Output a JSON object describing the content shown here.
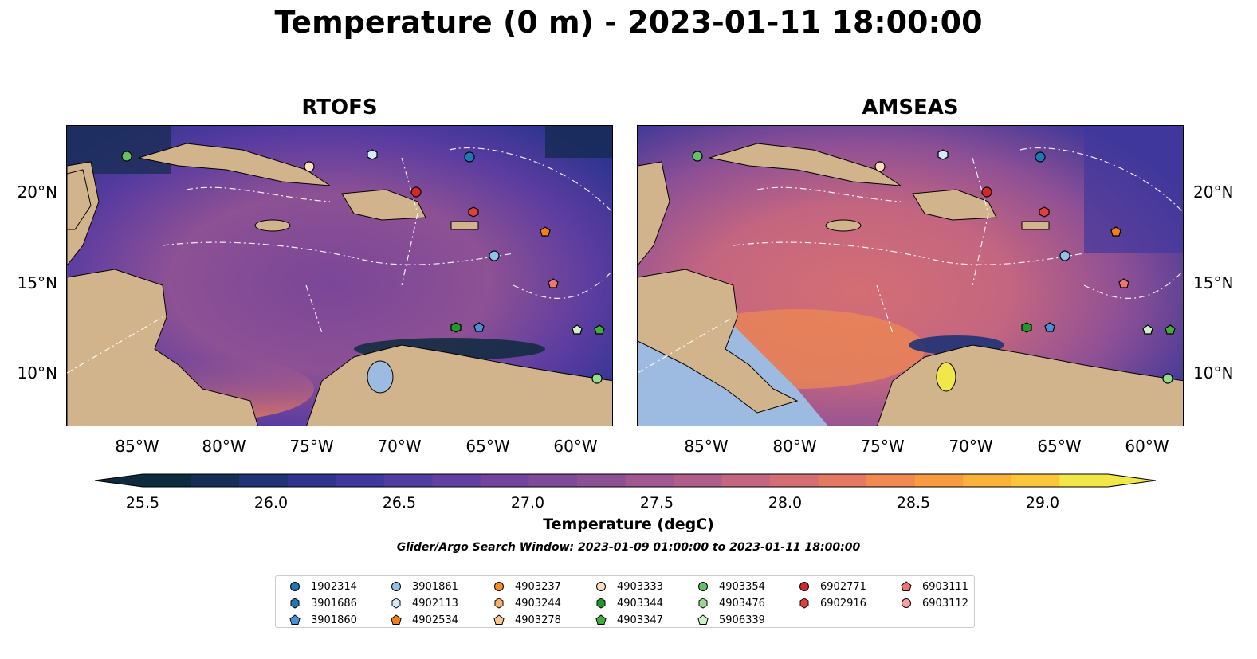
{
  "title": "Temperature (0 m) - 2023-01-11 18:00:00",
  "panels": [
    {
      "id": "rtofs",
      "title": "RTOFS"
    },
    {
      "id": "amseas",
      "title": "AMSEAS"
    }
  ],
  "lat_ticks": [
    "20°N",
    "15°N",
    "10°N"
  ],
  "lon_ticks": [
    "85°W",
    "80°W",
    "75°W",
    "70°W",
    "65°W",
    "60°W"
  ],
  "colorbar": {
    "label": "Temperature (degC)",
    "ticks": [
      "25.5",
      "26.0",
      "26.5",
      "27.0",
      "27.5",
      "28.0",
      "28.5",
      "29.0"
    ],
    "colors": [
      "#0d2a3e",
      "#162e57",
      "#1f3275",
      "#2f3490",
      "#41389d",
      "#523ba1",
      "#623fa0",
      "#72449d",
      "#7f4a99",
      "#8e5095",
      "#a15790",
      "#b05e89",
      "#c46680",
      "#d46e74",
      "#e47a62",
      "#f08a4f",
      "#f89c3f",
      "#fcb138",
      "#fcc63a",
      "#f2e748"
    ],
    "extend": "both"
  },
  "search_window": "Glider/Argo Search Window: 2023-01-09 01:00:00 to 2023-01-11 18:00:00",
  "legend": {
    "columns": [
      [
        {
          "id": "1902314",
          "marker": "circle",
          "color": "#1f77b4"
        },
        {
          "id": "3901686",
          "marker": "hexagon",
          "color": "#1f77b4"
        },
        {
          "id": "3901860",
          "marker": "pentagon",
          "color": "#4a8fd8"
        }
      ],
      [
        {
          "id": "3901861",
          "marker": "circle",
          "color": "#8fc1ea"
        },
        {
          "id": "4902113",
          "marker": "hexagon",
          "color": "#d4eaf8"
        },
        {
          "id": "4902534",
          "marker": "pentagon",
          "color": "#f57f17"
        }
      ],
      [
        {
          "id": "4903237",
          "marker": "circle",
          "color": "#fb8c2a"
        },
        {
          "id": "4903244",
          "marker": "hexagon",
          "color": "#fdb26b"
        },
        {
          "id": "4903278",
          "marker": "pentagon",
          "color": "#fdc590"
        }
      ],
      [
        {
          "id": "4903333",
          "marker": "circle",
          "color": "#fddcc0"
        },
        {
          "id": "4903344",
          "marker": "hexagon",
          "color": "#1f9a29"
        },
        {
          "id": "4903347",
          "marker": "pentagon",
          "color": "#3fae3a"
        }
      ],
      [
        {
          "id": "4903354",
          "marker": "circle",
          "color": "#63c063"
        },
        {
          "id": "4903476",
          "marker": "hexagon",
          "color": "#95dc8c"
        },
        {
          "id": "5906339",
          "marker": "pentagon",
          "color": "#cdf2c3"
        }
      ],
      [
        {
          "id": "6902771",
          "marker": "circle",
          "color": "#d62728"
        },
        {
          "id": "6902916",
          "marker": "hexagon",
          "color": "#e0403a"
        }
      ],
      [
        {
          "id": "6903111",
          "marker": "pentagon",
          "color": "#f07470"
        },
        {
          "id": "6903112",
          "marker": "circle",
          "color": "#f9a0a0"
        }
      ]
    ]
  },
  "colors": {
    "land": "#d2b48c",
    "lake": "#9dbbe0",
    "ocean_low": "#0d2a3e",
    "ocean_mid": "#6b42a0",
    "ocean_high": "#f2e748"
  }
}
